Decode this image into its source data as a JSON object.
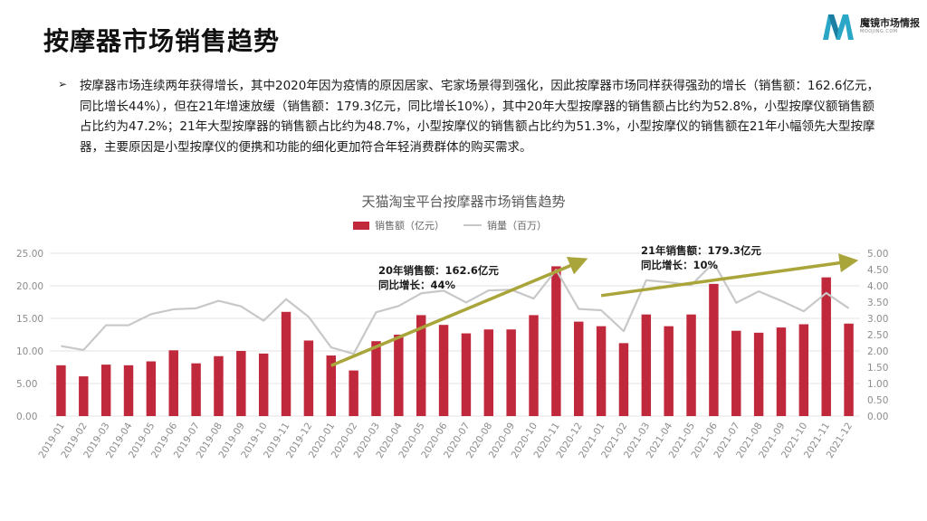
{
  "page": {
    "title": "按摩器市场销售趋势",
    "logo_text": "魔镜市场情报",
    "logo_sub": "MOOJING.COM",
    "bullet": "按摩器市场连续两年获得增长，其中2020年因为疫情的原因居家、宅家场景得到强化，因此按摩器市场同样获得强劲的增长（销售额：162.6亿元，同比增长44%），但在21年增速放缓（销售额：179.3亿元，同比增长10%），其中20年大型按摩器的销售额占比约为52.8%，小型按摩仪额销售额占比约为47.2%；21年大型按摩器的销售额占比约为48.7%，小型按摩仪的销售额占比约为51.3%，小型按摩仪的销售额在21年小幅领先大型按摩器，主要原因是小型按摩仪的便携和功能的细化更加符合年轻消费群体的购买需求。"
  },
  "colors": {
    "bar": "#c0283c",
    "line": "#c8c8c8",
    "arrow": "#aaa53a",
    "axis_text": "#8c8c8c",
    "grid": "#e3e3e3"
  },
  "chart_data": {
    "type": "bar",
    "title": "天猫淘宝平台按摩器市场销售趋势",
    "categories": [
      "2019-01",
      "2019-02",
      "2019-03",
      "2019-04",
      "2019-05",
      "2019-06",
      "2019-07",
      "2019-08",
      "2019-09",
      "2019-10",
      "2019-11",
      "2019-12",
      "2020-01",
      "2020-02",
      "2020-03",
      "2020-04",
      "2020-05",
      "2020-06",
      "2020-07",
      "2020-08",
      "2020-09",
      "2020-10",
      "2020-11",
      "2020-12",
      "2021-01",
      "2021-02",
      "2021-03",
      "2021-04",
      "2021-05",
      "2021-06",
      "2021-07",
      "2021-08",
      "2021-09",
      "2021-10",
      "2021-11",
      "2021-12"
    ],
    "series": [
      {
        "name": "销售额（亿元）",
        "type": "bar",
        "axis": "left",
        "values": [
          7.8,
          6.1,
          7.9,
          7.8,
          8.4,
          10.1,
          8.1,
          9.2,
          10.0,
          9.6,
          16.0,
          11.6,
          9.3,
          7.0,
          11.5,
          12.5,
          15.5,
          14.0,
          12.7,
          13.3,
          13.3,
          15.5,
          23.0,
          14.5,
          13.8,
          11.2,
          15.6,
          13.8,
          15.6,
          20.3,
          13.1,
          12.8,
          13.6,
          14.1,
          21.3,
          14.2
        ]
      },
      {
        "name": "销量（百万）",
        "type": "line",
        "axis": "right",
        "values": [
          2.15,
          2.03,
          2.79,
          2.79,
          3.13,
          3.28,
          3.31,
          3.54,
          3.37,
          2.93,
          3.59,
          3.05,
          2.11,
          1.91,
          3.19,
          3.38,
          3.77,
          3.85,
          3.49,
          3.86,
          3.88,
          3.61,
          4.49,
          3.29,
          3.25,
          2.61,
          4.17,
          4.11,
          4.02,
          4.71,
          3.48,
          3.83,
          3.54,
          3.22,
          3.78,
          3.31
        ]
      }
    ],
    "y_left": {
      "ticks": [
        "0.00",
        "5.00",
        "10.00",
        "15.00",
        "20.00",
        "25.00"
      ],
      "range": [
        0,
        25
      ]
    },
    "y_right": {
      "ticks": [
        "0.00",
        "0.50",
        "1.00",
        "1.50",
        "2.00",
        "2.50",
        "3.00",
        "3.50",
        "4.00",
        "4.50",
        "5.00"
      ],
      "range": [
        0,
        5
      ]
    },
    "legend_position": "top-center",
    "grid": true,
    "annotations": [
      {
        "line1": "20年销售额：162.6亿元",
        "line2": "同比增长：44%"
      },
      {
        "line1": "21年销售额：179.3亿元",
        "line2": "同比增长：10%"
      }
    ],
    "trend_arrows": [
      {
        "from_category": "2020-01",
        "from_value": 1.55,
        "to_category": "2020-12",
        "to_value": 4.75,
        "axis": "right"
      },
      {
        "from_category": "2021-01",
        "from_value": 3.7,
        "to_category": "2021-12",
        "to_value": 4.75,
        "axis": "right"
      }
    ]
  }
}
